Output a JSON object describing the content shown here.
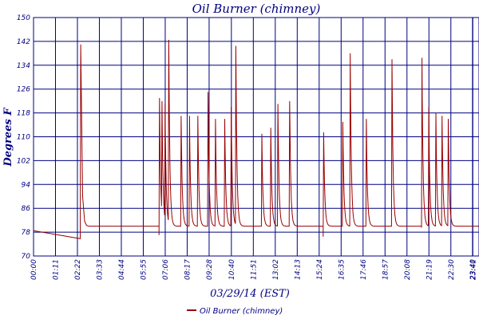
{
  "chart_data": {
    "type": "line",
    "title": "Oil Burner (chimney)",
    "ylabel": "Degrees F",
    "xlabel": "03/29/14 (EST)",
    "ylim": [
      70,
      150
    ],
    "yticks": [
      70,
      78,
      86,
      94,
      102,
      110,
      118,
      126,
      134,
      142,
      150
    ],
    "xlim": [
      0,
      1441
    ],
    "xticks": [
      {
        "label": "00:00",
        "t": 0
      },
      {
        "label": "01:11",
        "t": 71
      },
      {
        "label": "02:22",
        "t": 142
      },
      {
        "label": "03:33",
        "t": 213
      },
      {
        "label": "04:44",
        "t": 284
      },
      {
        "label": "05:55",
        "t": 355
      },
      {
        "label": "07:06",
        "t": 426
      },
      {
        "label": "08:17",
        "t": 497
      },
      {
        "label": "09:28",
        "t": 568
      },
      {
        "label": "10:40",
        "t": 640
      },
      {
        "label": "11:51",
        "t": 711
      },
      {
        "label": "13:02",
        "t": 782
      },
      {
        "label": "14:13",
        "t": 853
      },
      {
        "label": "15:24",
        "t": 924
      },
      {
        "label": "16:35",
        "t": 995
      },
      {
        "label": "17:46",
        "t": 1066
      },
      {
        "label": "18:57",
        "t": 1137
      },
      {
        "label": "20:08",
        "t": 1208
      },
      {
        "label": "21:19",
        "t": 1279
      },
      {
        "label": "22:30",
        "t": 1350
      },
      {
        "label": "23:41",
        "t": 1421
      },
      {
        "label": "23:40",
        "t": 1420
      }
    ],
    "grid": true,
    "legend": "bottom",
    "series": [
      {
        "name": "Oil Burner (chimney)",
        "color": "#990000",
        "base_start": 78.5,
        "floor": 78,
        "cycles": [
          {
            "t": 151,
            "peak": 141,
            "pre": 75.8
          },
          {
            "t": 406,
            "peak": 123,
            "pre": 77
          },
          {
            "t": 414,
            "peak": 122
          },
          {
            "t": 424,
            "peak": 121
          },
          {
            "t": 436,
            "peak": 142.5
          },
          {
            "t": 476,
            "peak": 117
          },
          {
            "t": 503,
            "peak": 117
          },
          {
            "t": 530,
            "peak": 117
          },
          {
            "t": 563,
            "peak": 125
          },
          {
            "t": 587,
            "peak": 116
          },
          {
            "t": 617,
            "peak": 116
          },
          {
            "t": 638,
            "peak": 120
          },
          {
            "t": 653,
            "peak": 140.5
          },
          {
            "t": 737,
            "peak": 111
          },
          {
            "t": 766,
            "peak": 113
          },
          {
            "t": 789,
            "peak": 121
          },
          {
            "t": 827,
            "peak": 122
          },
          {
            "t": 937,
            "peak": 111.5,
            "pre": 76.5
          },
          {
            "t": 999,
            "peak": 115
          },
          {
            "t": 1023,
            "peak": 138
          },
          {
            "t": 1075,
            "peak": 116
          },
          {
            "t": 1158,
            "peak": 136
          },
          {
            "t": 1255,
            "peak": 136.5,
            "pre": 79.5
          },
          {
            "t": 1277,
            "peak": 120
          },
          {
            "t": 1300,
            "peak": 118
          },
          {
            "t": 1320,
            "peak": 117
          },
          {
            "t": 1340,
            "peak": 116
          }
        ],
        "end_value": 81
      }
    ]
  }
}
